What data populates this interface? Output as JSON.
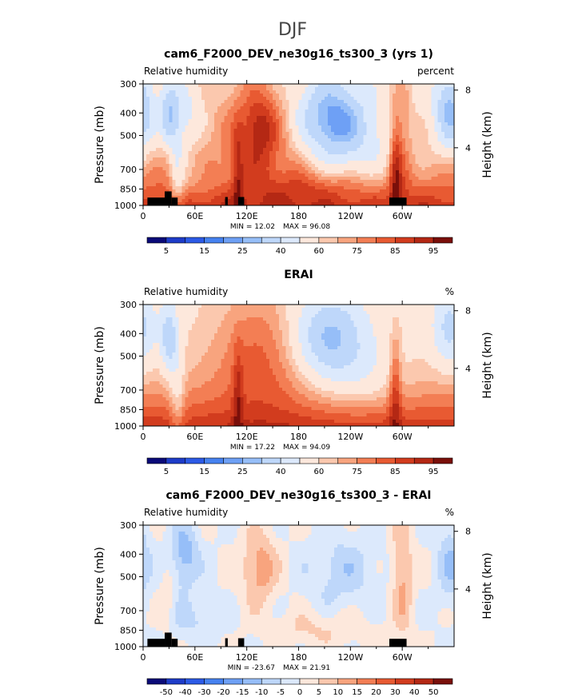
{
  "figure_title": "DJF",
  "chart_data": [
    {
      "type": "heatmap",
      "title": "cam6_F2000_DEV_ne30g16_ts300_3 (yrs 1)",
      "left_label": "Relative humidity",
      "right_label": "percent",
      "ylabel": "Pressure (mb)",
      "ylabel_right": "Height (km)",
      "x_ticks": [
        "0",
        "60E",
        "120E",
        "180",
        "120W",
        "60W"
      ],
      "x_tick_values": [
        0,
        60,
        120,
        180,
        240,
        300
      ],
      "xlim": [
        0,
        360
      ],
      "y_ticks": [
        "300",
        "400",
        "500",
        "700",
        "850",
        "1000"
      ],
      "y_tick_values": [
        300,
        400,
        500,
        700,
        850,
        1000
      ],
      "ylim": [
        1000,
        300
      ],
      "y_scale": "log",
      "y_right_ticks": [
        "8",
        "4"
      ],
      "y_right_values": [
        8,
        4
      ],
      "min_label": "MIN = 12.02",
      "max_label": "MAX = 96.08",
      "colorbar_ticks": [
        "5",
        "15",
        "25",
        "40",
        "60",
        "75",
        "85",
        "95"
      ],
      "colorbar_levels": 16,
      "field": "model"
    },
    {
      "type": "heatmap",
      "title": "ERAI",
      "left_label": "Relative humidity",
      "right_label": "%",
      "ylabel": "Pressure (mb)",
      "ylabel_right": "Height (km)",
      "x_ticks": [
        "0",
        "60E",
        "120E",
        "180",
        "120W",
        "60W"
      ],
      "x_tick_values": [
        0,
        60,
        120,
        180,
        240,
        300
      ],
      "xlim": [
        0,
        360
      ],
      "y_ticks": [
        "300",
        "400",
        "500",
        "700",
        "850",
        "1000"
      ],
      "y_tick_values": [
        300,
        400,
        500,
        700,
        850,
        1000
      ],
      "ylim": [
        1000,
        300
      ],
      "y_scale": "log",
      "y_right_ticks": [
        "8",
        "4"
      ],
      "y_right_values": [
        8,
        4
      ],
      "min_label": "MIN = 17.22",
      "max_label": "MAX = 94.09",
      "colorbar_ticks": [
        "5",
        "15",
        "25",
        "40",
        "60",
        "75",
        "85",
        "95"
      ],
      "colorbar_levels": 16,
      "field": "obs"
    },
    {
      "type": "heatmap",
      "title": "cam6_F2000_DEV_ne30g16_ts300_3 - ERAI",
      "left_label": "Relative humidity",
      "right_label": "%",
      "ylabel": "Pressure (mb)",
      "ylabel_right": "Height (km)",
      "x_ticks": [
        "0",
        "60E",
        "120E",
        "180",
        "120W",
        "60W"
      ],
      "x_tick_values": [
        0,
        60,
        120,
        180,
        240,
        300
      ],
      "xlim": [
        0,
        360
      ],
      "y_ticks": [
        "300",
        "400",
        "500",
        "700",
        "850",
        "1000"
      ],
      "y_tick_values": [
        300,
        400,
        500,
        700,
        850,
        1000
      ],
      "ylim": [
        1000,
        300
      ],
      "y_scale": "log",
      "y_right_ticks": [
        "8",
        "4"
      ],
      "y_right_values": [
        8,
        4
      ],
      "min_label": "MIN = -23.67",
      "max_label": "MAX = 21.91",
      "colorbar_ticks": [
        "-50",
        "-40",
        "-30",
        "-20",
        "-15",
        "-10",
        "-5",
        "0",
        "5",
        "10",
        "15",
        "20",
        "30",
        "40",
        "50"
      ],
      "colorbar_levels": 16,
      "field": "diff"
    }
  ],
  "colors": {
    "palette": [
      "#0a0a78",
      "#1e3cc8",
      "#2c5ae6",
      "#4682f0",
      "#6ea0f5",
      "#96bef8",
      "#bed7fa",
      "#dce9fc",
      "#fde8dc",
      "#fbc8ae",
      "#f8a47e",
      "#f37e54",
      "#e85a32",
      "#d23c1e",
      "#b42814",
      "#7a0f0a"
    ]
  }
}
